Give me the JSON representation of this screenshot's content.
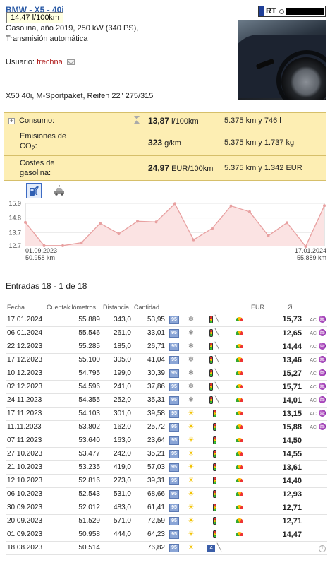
{
  "vehicle": {
    "title": "BMW - X5 - 40i",
    "tooltip": "14,47 l/100km",
    "description_line1": "Gasolina, año 2019, 250 kW (340 PS),",
    "description_line2": "Transmisión automática",
    "user_label": "Usuario:",
    "user_name": "frechna",
    "model_note": "X50 40i, M-Sportpaket, Reifen 22\" 275/315",
    "plate_text": "RT"
  },
  "stats": {
    "consumption": {
      "label": "Consumo:",
      "value": "13,87",
      "unit": "l/100km",
      "detail": "5.375 km y 746 l"
    },
    "emissions": {
      "label_line1": "Emisiones de",
      "label_line2": "CO",
      "label_sub": "2",
      "label_tail": ":",
      "value": "323",
      "unit": "g/km",
      "detail": "5.375 km y 1.737 kg"
    },
    "costs": {
      "label_line1": "Costes de",
      "label_line2": "gasolina:",
      "value": "24,97",
      "unit": "EUR/100km",
      "detail": "5.375 km y 1.342 EUR"
    }
  },
  "chart_tabs": [
    "fuel-pump-icon",
    "car-icon"
  ],
  "chart_data": {
    "type": "area",
    "y_ticks": [
      "15.9",
      "14.8",
      "13.7",
      "12.7"
    ],
    "ylim": [
      12.7,
      15.9
    ],
    "values": [
      14.47,
      12.71,
      12.71,
      12.93,
      14.4,
      13.61,
      14.55,
      14.5,
      15.88,
      13.15,
      14.01,
      15.71,
      15.27,
      13.46,
      14.44,
      12.65,
      15.73
    ],
    "start_date": "01.09.2023",
    "start_km": "50.958 km",
    "end_date": "17.01.2024",
    "end_km": "55.889 km",
    "line_color": "#e8a0a0",
    "fill_color": "#fbe3e3"
  },
  "entries_title": "Entradas 18 - 1 de 18",
  "log": {
    "headers": [
      "Fecha",
      "Cuentakilómetros",
      "Distancia",
      "Cantidad",
      "",
      "",
      "",
      "",
      "EUR",
      "Ø",
      ""
    ],
    "rows": [
      {
        "date": "17.01.2024",
        "odo": "55.889",
        "dist": "343,0",
        "qty": "53,95",
        "weather": "snow",
        "road": true,
        "gauge": true,
        "avg": "15,73",
        "extras": true
      },
      {
        "date": "06.01.2024",
        "odo": "55.546",
        "dist": "261,0",
        "qty": "33,01",
        "weather": "snow",
        "road": true,
        "gauge": true,
        "avg": "12,65",
        "extras": true
      },
      {
        "date": "22.12.2023",
        "odo": "55.285",
        "dist": "185,0",
        "qty": "26,71",
        "weather": "snow",
        "road": true,
        "gauge": true,
        "avg": "14,44",
        "extras": true
      },
      {
        "date": "17.12.2023",
        "odo": "55.100",
        "dist": "305,0",
        "qty": "41,04",
        "weather": "snow",
        "road": true,
        "gauge": true,
        "avg": "13,46",
        "extras": true
      },
      {
        "date": "10.12.2023",
        "odo": "54.795",
        "dist": "199,0",
        "qty": "30,39",
        "weather": "snow",
        "road": true,
        "gauge": true,
        "avg": "15,27",
        "extras": true
      },
      {
        "date": "02.12.2023",
        "odo": "54.596",
        "dist": "241,0",
        "qty": "37,86",
        "weather": "snow",
        "road": true,
        "gauge": true,
        "avg": "15,71",
        "extras": true
      },
      {
        "date": "24.11.2023",
        "odo": "54.355",
        "dist": "252,0",
        "qty": "35,31",
        "weather": "snow",
        "road": true,
        "gauge": true,
        "avg": "14,01",
        "extras": true
      },
      {
        "date": "17.11.2023",
        "odo": "54.103",
        "dist": "301,0",
        "qty": "39,58",
        "weather": "sun",
        "road": false,
        "gauge": true,
        "avg": "13,15",
        "extras": true
      },
      {
        "date": "11.11.2023",
        "odo": "53.802",
        "dist": "162,0",
        "qty": "25,72",
        "weather": "sun",
        "road": false,
        "gauge": true,
        "avg": "15,88",
        "extras": true
      },
      {
        "date": "07.11.2023",
        "odo": "53.640",
        "dist": "163,0",
        "qty": "23,64",
        "weather": "sun",
        "road": false,
        "gauge": true,
        "avg": "14,50",
        "extras": false
      },
      {
        "date": "27.10.2023",
        "odo": "53.477",
        "dist": "242,0",
        "qty": "35,21",
        "weather": "sun",
        "road": false,
        "gauge": true,
        "avg": "14,55",
        "extras": false
      },
      {
        "date": "21.10.2023",
        "odo": "53.235",
        "dist": "419,0",
        "qty": "57,03",
        "weather": "sun",
        "road": false,
        "gauge": true,
        "avg": "13,61",
        "extras": false
      },
      {
        "date": "12.10.2023",
        "odo": "52.816",
        "dist": "273,0",
        "qty": "39,31",
        "weather": "sun",
        "road": false,
        "gauge": true,
        "avg": "14,40",
        "extras": false
      },
      {
        "date": "06.10.2023",
        "odo": "52.543",
        "dist": "531,0",
        "qty": "68,66",
        "weather": "sun",
        "road": false,
        "gauge": true,
        "avg": "12,93",
        "extras": false
      },
      {
        "date": "30.09.2023",
        "odo": "52.012",
        "dist": "483,0",
        "qty": "61,41",
        "weather": "sun",
        "road": false,
        "gauge": true,
        "avg": "12,71",
        "extras": false
      },
      {
        "date": "20.09.2023",
        "odo": "51.529",
        "dist": "571,0",
        "qty": "72,59",
        "weather": "sun",
        "road": false,
        "gauge": true,
        "avg": "12,71",
        "extras": false
      },
      {
        "date": "01.09.2023",
        "odo": "50.958",
        "dist": "444,0",
        "qty": "64,23",
        "weather": "sun",
        "road": false,
        "gauge": true,
        "avg": "14,47",
        "extras": false
      },
      {
        "date": "18.08.2023",
        "odo": "50.514",
        "dist": "",
        "qty": "76,82",
        "weather": "sun",
        "road": false,
        "gauge": false,
        "highway": true,
        "avg": "",
        "extras": false,
        "info": true
      }
    ],
    "fuel_badge": "95",
    "ac_label": "AC",
    "heat_glyph": "♒",
    "info_glyph": "1"
  }
}
